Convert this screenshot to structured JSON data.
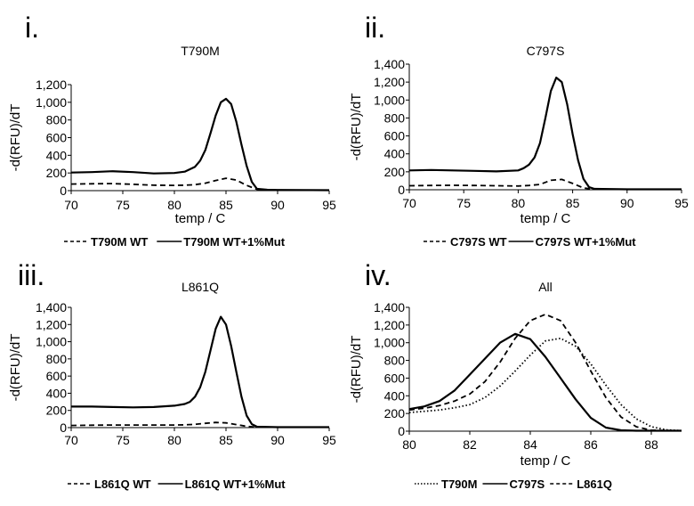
{
  "chart_data": [
    {
      "type": "line",
      "panel_label": "i.",
      "title": "T790M",
      "xlabel": "temp / C",
      "ylabel": "-d(RFU)/dT",
      "xlim": [
        70,
        95
      ],
      "ylim": [
        0,
        1200
      ],
      "xticks": [
        "70",
        "75",
        "80",
        "85",
        "90",
        "95"
      ],
      "yticks": [
        "0",
        "200",
        "400",
        "600",
        "800",
        "1,000",
        "1,200"
      ],
      "ytick_values": [
        0,
        200,
        400,
        600,
        800,
        1000,
        1200
      ],
      "xtick_values": [
        70,
        75,
        80,
        85,
        90,
        95
      ],
      "legend_position": "bottom",
      "series": [
        {
          "name": "T790M WT",
          "dash": "dashed",
          "x": [
            70,
            72,
            74,
            76,
            78,
            80,
            81,
            82,
            83,
            84,
            85,
            86,
            87,
            88,
            89,
            90,
            95
          ],
          "y": [
            75,
            78,
            80,
            72,
            62,
            60,
            62,
            68,
            85,
            115,
            140,
            120,
            60,
            15,
            5,
            5,
            5
          ]
        },
        {
          "name": "T790M WT+1%Mut",
          "dash": "solid",
          "x": [
            70,
            72,
            74,
            76,
            78,
            80,
            81,
            82,
            82.5,
            83,
            83.5,
            84,
            84.5,
            85,
            85.5,
            86,
            86.5,
            87,
            87.5,
            88,
            89,
            90,
            95
          ],
          "y": [
            205,
            210,
            220,
            210,
            195,
            200,
            215,
            270,
            340,
            460,
            650,
            850,
            1000,
            1040,
            980,
            780,
            520,
            280,
            100,
            20,
            10,
            8,
            5
          ]
        }
      ]
    },
    {
      "type": "line",
      "panel_label": "ii.",
      "title": "C797S",
      "xlabel": "temp / C",
      "ylabel": "-d(RFU)/dT",
      "xlim": [
        70,
        95
      ],
      "ylim": [
        0,
        1400
      ],
      "xticks": [
        "70",
        "75",
        "80",
        "85",
        "90",
        "95"
      ],
      "yticks": [
        "0",
        "200",
        "400",
        "600",
        "800",
        "1,000",
        "1,200",
        "1,400"
      ],
      "ytick_values": [
        0,
        200,
        400,
        600,
        800,
        1000,
        1200,
        1400
      ],
      "xtick_values": [
        70,
        75,
        80,
        85,
        90,
        95
      ],
      "legend_position": "bottom",
      "series": [
        {
          "name": "C797S WT",
          "dash": "dashed",
          "x": [
            70,
            72,
            74,
            76,
            78,
            80,
            81,
            82,
            83,
            84,
            85,
            86,
            87,
            90,
            95
          ],
          "y": [
            45,
            48,
            50,
            48,
            45,
            42,
            48,
            60,
            105,
            115,
            70,
            20,
            5,
            5,
            5
          ]
        },
        {
          "name": "C797S WT+1%Mut",
          "dash": "solid",
          "x": [
            70,
            72,
            74,
            76,
            78,
            80,
            80.5,
            81,
            81.5,
            82,
            82.5,
            83,
            83.5,
            84,
            84.5,
            85,
            85.5,
            86,
            86.5,
            87,
            90,
            95
          ],
          "y": [
            215,
            220,
            215,
            210,
            205,
            215,
            240,
            280,
            360,
            520,
            800,
            1100,
            1250,
            1200,
            950,
            620,
            330,
            120,
            30,
            10,
            5,
            5
          ]
        }
      ]
    },
    {
      "type": "line",
      "panel_label": "iii.",
      "title": "L861Q",
      "xlabel": "",
      "ylabel": "-d(RFU)/dT",
      "xlim": [
        70,
        95
      ],
      "ylim": [
        0,
        1400
      ],
      "xticks": [
        "70",
        "75",
        "80",
        "85",
        "90",
        "95"
      ],
      "yticks": [
        "0",
        "200",
        "400",
        "600",
        "800",
        "1,000",
        "1,200",
        "1,400"
      ],
      "ytick_values": [
        0,
        200,
        400,
        600,
        800,
        1000,
        1200,
        1400
      ],
      "xtick_values": [
        70,
        75,
        80,
        85,
        90,
        95
      ],
      "legend_position": "bottom",
      "series": [
        {
          "name": "L861Q WT",
          "dash": "dashed",
          "x": [
            70,
            72,
            74,
            76,
            78,
            80,
            81,
            82,
            83,
            84,
            85,
            86,
            87,
            88,
            90,
            95
          ],
          "y": [
            25,
            28,
            30,
            30,
            30,
            30,
            32,
            38,
            50,
            60,
            55,
            35,
            15,
            5,
            5,
            5
          ]
        },
        {
          "name": "L861Q WT+1%Mut",
          "dash": "solid",
          "x": [
            70,
            72,
            74,
            76,
            78,
            80,
            81,
            81.5,
            82,
            82.5,
            83,
            83.5,
            84,
            84.5,
            85,
            85.5,
            86,
            86.5,
            87,
            87.5,
            88,
            90,
            95
          ],
          "y": [
            245,
            245,
            240,
            235,
            240,
            255,
            275,
            300,
            360,
            470,
            650,
            900,
            1150,
            1290,
            1200,
            950,
            650,
            360,
            140,
            40,
            10,
            5,
            5
          ]
        }
      ]
    },
    {
      "type": "line",
      "panel_label": "iv.",
      "title": "All",
      "xlabel": "temp / C",
      "ylabel": "-d(RFU)/dT",
      "xlim": [
        80,
        89
      ],
      "ylim": [
        0,
        1400
      ],
      "xticks": [
        "80",
        "82",
        "84",
        "86",
        "88"
      ],
      "yticks": [
        "0",
        "200",
        "400",
        "600",
        "800",
        "1,000",
        "1,200",
        "1,400"
      ],
      "ytick_values": [
        0,
        200,
        400,
        600,
        800,
        1000,
        1200,
        1400
      ],
      "xtick_values": [
        80,
        82,
        84,
        86,
        88
      ],
      "legend_position": "bottom",
      "series": [
        {
          "name": "T790M",
          "dash": "dotted",
          "x": [
            80,
            80.5,
            81,
            81.5,
            82,
            82.5,
            83,
            83.5,
            84,
            84.5,
            85,
            85.5,
            86,
            86.5,
            87,
            87.5,
            88,
            88.5,
            89
          ],
          "y": [
            210,
            225,
            240,
            265,
            300,
            380,
            510,
            680,
            860,
            1020,
            1050,
            960,
            760,
            520,
            300,
            140,
            50,
            15,
            5
          ]
        },
        {
          "name": "C797S",
          "dash": "solid",
          "x": [
            80,
            80.5,
            81,
            81.5,
            82,
            82.5,
            83,
            83.5,
            84,
            84.5,
            85,
            85.5,
            86,
            86.5,
            87,
            87.5,
            88,
            89
          ],
          "y": [
            250,
            280,
            340,
            460,
            640,
            820,
            1000,
            1100,
            1040,
            840,
            600,
            360,
            150,
            40,
            10,
            5,
            5,
            5
          ]
        },
        {
          "name": "L861Q",
          "dash": "dashed",
          "x": [
            80,
            80.5,
            81,
            81.5,
            82,
            82.5,
            83,
            83.5,
            84,
            84.5,
            85,
            85.5,
            86,
            86.5,
            87,
            87.5,
            88,
            89
          ],
          "y": [
            240,
            260,
            290,
            340,
            420,
            560,
            780,
            1050,
            1250,
            1320,
            1250,
            1000,
            680,
            380,
            160,
            50,
            10,
            5
          ]
        }
      ]
    }
  ]
}
